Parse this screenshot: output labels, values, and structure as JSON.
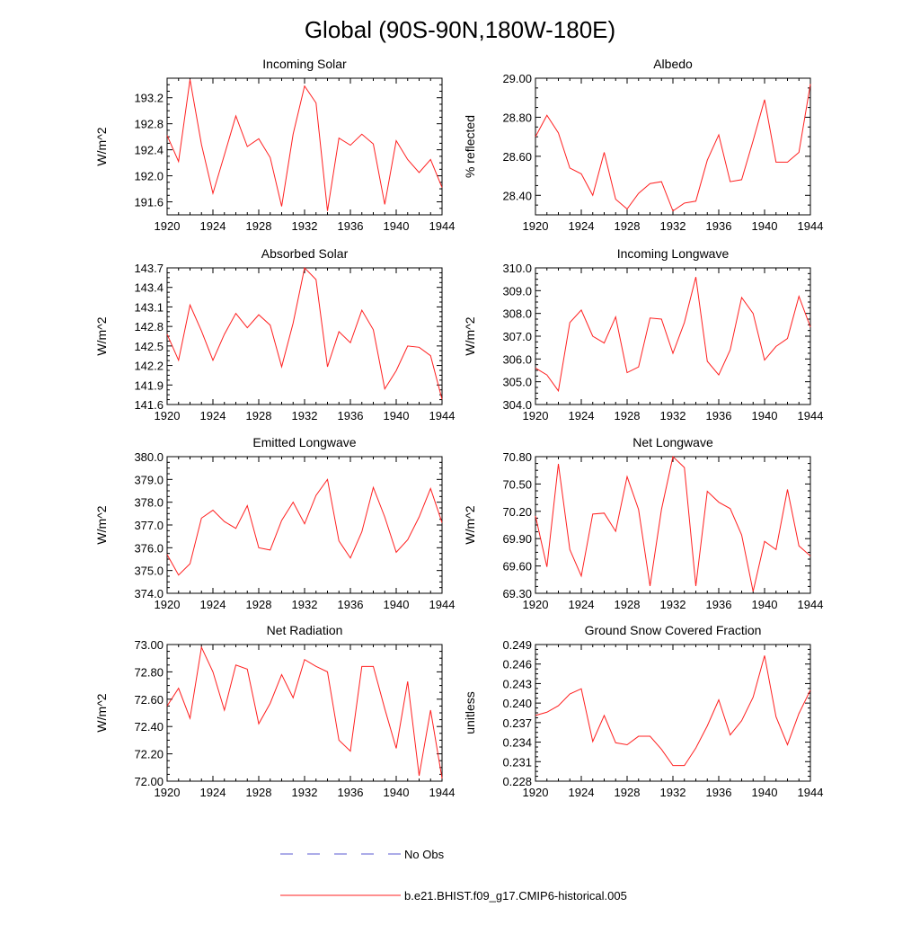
{
  "title": "Global (90S-90N,180W-180E)",
  "legend": {
    "no_obs_label": "No Obs",
    "no_obs_color": "#5a5ad0",
    "model_label": "b.e21.BHIST.f09_g17.CMIP6-historical.005",
    "model_color": "#ff2020"
  },
  "x_ticks": [
    "1920",
    "1924",
    "1928",
    "1932",
    "1936",
    "1940",
    "1944"
  ],
  "chart_data": [
    {
      "type": "line",
      "title": "Incoming Solar",
      "ylabel": "W/m^2",
      "xlim": [
        1920,
        1944
      ],
      "ylim": [
        191.4,
        193.5
      ],
      "y_ticks": [
        "191.6",
        "192.0",
        "192.4",
        "192.8",
        "193.2"
      ],
      "y_tick_values": [
        191.6,
        192.0,
        192.4,
        192.8,
        193.2
      ],
      "x": [
        1920,
        1921,
        1922,
        1923,
        1924,
        1925,
        1926,
        1927,
        1928,
        1929,
        1930,
        1931,
        1932,
        1933,
        1934,
        1935,
        1936,
        1937,
        1938,
        1939,
        1940,
        1941,
        1942,
        1943,
        1944
      ],
      "values": [
        192.62,
        192.22,
        193.48,
        192.48,
        191.73,
        192.32,
        192.92,
        192.45,
        192.57,
        192.28,
        191.53,
        192.64,
        193.38,
        193.12,
        191.46,
        192.58,
        192.47,
        192.64,
        192.49,
        191.56,
        192.54,
        192.25,
        192.05,
        192.25,
        191.82
      ]
    },
    {
      "type": "line",
      "title": "Albedo",
      "ylabel": "% reflected",
      "xlim": [
        1920,
        1944
      ],
      "ylim": [
        28.3,
        29.0
      ],
      "y_ticks": [
        "28.40",
        "28.60",
        "28.80",
        "29.00"
      ],
      "y_tick_values": [
        28.4,
        28.6,
        28.8,
        29.0
      ],
      "x": [
        1920,
        1921,
        1922,
        1923,
        1924,
        1925,
        1926,
        1927,
        1928,
        1929,
        1930,
        1931,
        1932,
        1933,
        1934,
        1935,
        1936,
        1937,
        1938,
        1939,
        1940,
        1941,
        1942,
        1943,
        1944
      ],
      "values": [
        28.7,
        28.81,
        28.72,
        28.54,
        28.51,
        28.4,
        28.62,
        28.38,
        28.33,
        28.41,
        28.46,
        28.47,
        28.32,
        28.36,
        28.37,
        28.58,
        28.71,
        28.47,
        28.48,
        28.68,
        28.89,
        28.57,
        28.57,
        28.62,
        28.97
      ]
    },
    {
      "type": "line",
      "title": "Absorbed Solar",
      "ylabel": "W/m^2",
      "xlim": [
        1920,
        1944
      ],
      "ylim": [
        141.6,
        143.7
      ],
      "y_ticks": [
        "141.6",
        "141.9",
        "142.2",
        "142.5",
        "142.8",
        "143.1",
        "143.4",
        "143.7"
      ],
      "y_tick_values": [
        141.6,
        141.9,
        142.2,
        142.5,
        142.8,
        143.1,
        143.4,
        143.7
      ],
      "x": [
        1920,
        1921,
        1922,
        1923,
        1924,
        1925,
        1926,
        1927,
        1928,
        1929,
        1930,
        1931,
        1932,
        1933,
        1934,
        1935,
        1936,
        1937,
        1938,
        1939,
        1940,
        1941,
        1942,
        1943,
        1944
      ],
      "values": [
        142.68,
        142.28,
        143.13,
        142.73,
        142.28,
        142.68,
        143.0,
        142.78,
        142.98,
        142.82,
        142.18,
        142.85,
        143.7,
        143.52,
        142.18,
        142.72,
        142.55,
        143.05,
        142.75,
        141.84,
        142.12,
        142.5,
        142.48,
        142.35,
        141.68
      ]
    },
    {
      "type": "line",
      "title": "Incoming Longwave",
      "ylabel": "W/m^2",
      "xlim": [
        1920,
        1944
      ],
      "ylim": [
        304.0,
        310.0
      ],
      "y_ticks": [
        "304.0",
        "305.0",
        "306.0",
        "307.0",
        "308.0",
        "309.0",
        "310.0"
      ],
      "y_tick_values": [
        304,
        305,
        306,
        307,
        308,
        309,
        310
      ],
      "x": [
        1920,
        1921,
        1922,
        1923,
        1924,
        1925,
        1926,
        1927,
        1928,
        1929,
        1930,
        1931,
        1932,
        1933,
        1934,
        1935,
        1936,
        1937,
        1938,
        1939,
        1940,
        1941,
        1942,
        1943,
        1944
      ],
      "values": [
        305.6,
        305.3,
        304.6,
        307.6,
        308.15,
        307.0,
        306.7,
        307.85,
        305.4,
        305.65,
        307.8,
        307.75,
        306.25,
        307.6,
        309.6,
        305.9,
        305.3,
        306.4,
        308.7,
        308.0,
        305.95,
        306.55,
        306.9,
        308.75,
        307.4
      ]
    },
    {
      "type": "line",
      "title": "Emitted Longwave",
      "ylabel": "W/m^2",
      "xlim": [
        1920,
        1944
      ],
      "ylim": [
        374.0,
        380.0
      ],
      "y_ticks": [
        "374.0",
        "375.0",
        "376.0",
        "377.0",
        "378.0",
        "379.0",
        "380.0"
      ],
      "y_tick_values": [
        374,
        375,
        376,
        377,
        378,
        379,
        380
      ],
      "x": [
        1920,
        1921,
        1922,
        1923,
        1924,
        1925,
        1926,
        1927,
        1928,
        1929,
        1930,
        1931,
        1932,
        1933,
        1934,
        1935,
        1936,
        1937,
        1938,
        1939,
        1940,
        1941,
        1942,
        1943,
        1944
      ],
      "values": [
        375.7,
        374.8,
        375.3,
        377.3,
        377.65,
        377.15,
        376.85,
        377.85,
        376.0,
        375.9,
        377.2,
        378.0,
        377.05,
        378.3,
        379.0,
        376.3,
        375.55,
        376.7,
        378.65,
        377.35,
        375.8,
        376.35,
        377.35,
        378.6,
        377.1
      ]
    },
    {
      "type": "line",
      "title": "Net Longwave",
      "ylabel": "W/m^2",
      "xlim": [
        1920,
        1944
      ],
      "ylim": [
        69.3,
        70.8
      ],
      "y_ticks": [
        "69.30",
        "69.60",
        "69.90",
        "70.20",
        "70.50",
        "70.80"
      ],
      "y_tick_values": [
        69.3,
        69.6,
        69.9,
        70.2,
        70.5,
        70.8
      ],
      "x": [
        1920,
        1921,
        1922,
        1923,
        1924,
        1925,
        1926,
        1927,
        1928,
        1929,
        1930,
        1931,
        1932,
        1933,
        1934,
        1935,
        1936,
        1937,
        1938,
        1939,
        1940,
        1941,
        1942,
        1943,
        1944
      ],
      "values": [
        70.15,
        69.59,
        70.72,
        69.78,
        69.49,
        70.17,
        70.18,
        69.98,
        70.58,
        70.22,
        69.38,
        70.22,
        70.8,
        70.68,
        69.38,
        70.42,
        70.3,
        70.23,
        69.94,
        69.32,
        69.87,
        69.78,
        70.44,
        69.82,
        69.71
      ]
    },
    {
      "type": "line",
      "title": "Net Radiation",
      "ylabel": "W/m^2",
      "xlim": [
        1920,
        1944
      ],
      "ylim": [
        72.0,
        73.0
      ],
      "y_ticks": [
        "72.00",
        "72.20",
        "72.40",
        "72.60",
        "72.80",
        "73.00"
      ],
      "y_tick_values": [
        72.0,
        72.2,
        72.4,
        72.6,
        72.8,
        73.0
      ],
      "x": [
        1920,
        1921,
        1922,
        1923,
        1924,
        1925,
        1926,
        1927,
        1928,
        1929,
        1930,
        1931,
        1932,
        1933,
        1934,
        1935,
        1936,
        1937,
        1938,
        1939,
        1940,
        1941,
        1942,
        1943,
        1944
      ],
      "values": [
        72.55,
        72.68,
        72.46,
        72.98,
        72.8,
        72.52,
        72.85,
        72.82,
        72.42,
        72.57,
        72.78,
        72.61,
        72.89,
        72.84,
        72.8,
        72.3,
        72.22,
        72.84,
        72.84,
        72.53,
        72.24,
        72.73,
        72.04,
        72.52,
        72.02
      ]
    },
    {
      "type": "line",
      "title": "Ground Snow Covered Fraction",
      "ylabel": "unitless",
      "xlim": [
        1920,
        1944
      ],
      "ylim": [
        0.228,
        0.249
      ],
      "y_ticks": [
        "0.228",
        "0.231",
        "0.234",
        "0.237",
        "0.240",
        "0.243",
        "0.246",
        "0.249"
      ],
      "y_tick_values": [
        0.228,
        0.231,
        0.234,
        0.237,
        0.24,
        0.243,
        0.246,
        0.249
      ],
      "x": [
        1920,
        1921,
        1922,
        1923,
        1924,
        1925,
        1926,
        1927,
        1928,
        1929,
        1930,
        1931,
        1932,
        1933,
        1934,
        1935,
        1936,
        1937,
        1938,
        1939,
        1940,
        1941,
        1942,
        1943,
        1944
      ],
      "values": [
        0.2381,
        0.2386,
        0.2396,
        0.2414,
        0.2422,
        0.2341,
        0.2381,
        0.2339,
        0.2336,
        0.2349,
        0.2349,
        0.2329,
        0.2304,
        0.2304,
        0.2331,
        0.2365,
        0.2405,
        0.2351,
        0.2373,
        0.2409,
        0.2473,
        0.2379,
        0.2336,
        0.2384,
        0.242
      ]
    }
  ]
}
